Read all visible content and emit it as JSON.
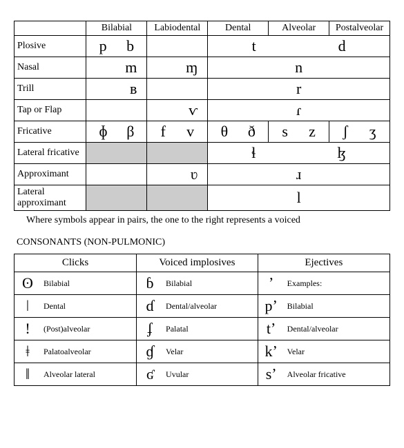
{
  "pulmonic": {
    "columns": [
      "",
      "Bilabial",
      "Labiodental",
      "Dental",
      "Alveolar",
      "Postalveolar"
    ],
    "rows": [
      {
        "label": "Plosive",
        "cells": [
          {
            "left": "p",
            "right": "b"
          },
          {
            "empty": true
          },
          {
            "span3": true,
            "left": "t",
            "right": "d"
          }
        ]
      },
      {
        "label": "Nasal",
        "cells": [
          {
            "right": "m"
          },
          {
            "right": "ɱ"
          },
          {
            "span3": true,
            "center": "n"
          }
        ]
      },
      {
        "label": "Trill",
        "cells": [
          {
            "right": "ʙ"
          },
          {
            "empty": true
          },
          {
            "span3": true,
            "center": "r"
          }
        ]
      },
      {
        "label": "Tap or Flap",
        "cells": [
          {
            "empty": true
          },
          {
            "right": "ⱱ"
          },
          {
            "span3": true,
            "center": "ɾ"
          }
        ]
      },
      {
        "label": "Fricative",
        "cells": [
          {
            "left": "ɸ",
            "right": "β"
          },
          {
            "left": "f",
            "right": "v"
          },
          {
            "left": "θ",
            "right": "ð"
          },
          {
            "left": "s",
            "right": "z"
          },
          {
            "left": "ʃ",
            "right": "ʒ"
          }
        ]
      },
      {
        "label": "Lateral fricative",
        "cells": [
          {
            "shaded": true
          },
          {
            "shaded": true
          },
          {
            "span3": true,
            "left": "ɬ",
            "right": "ɮ"
          }
        ]
      },
      {
        "label": "Approximant",
        "cells": [
          {
            "empty": true
          },
          {
            "right": "ʋ"
          },
          {
            "span3": true,
            "center": "ɹ"
          }
        ]
      },
      {
        "label": "Lateral approximant",
        "cells": [
          {
            "shaded": true
          },
          {
            "shaded": true
          },
          {
            "span3": true,
            "center": "l"
          }
        ]
      }
    ]
  },
  "caption": "Where symbols appear in pairs, the one to the right represents a voiced",
  "section_title": "CONSONANTS (NON-PULMONIC)",
  "nonpulmonic": {
    "headers": [
      "Clicks",
      "Voiced implosives",
      "Ejectives"
    ],
    "rows": [
      {
        "c1_sym": "ʘ",
        "c1_lab": "Bilabial",
        "c2_sym": "ɓ",
        "c2_lab": "Bilabial",
        "c3_sym": "ʼ",
        "c3_lab": "Examples:"
      },
      {
        "c1_sym": "ǀ",
        "c1_lab": "Dental",
        "c2_sym": "ɗ",
        "c2_lab": "Dental/alveolar",
        "c3_sym": "pʼ",
        "c3_lab": "Bilabial"
      },
      {
        "c1_sym": "ǃ",
        "c1_lab": "(Post)alveolar",
        "c2_sym": "ʄ",
        "c2_lab": "Palatal",
        "c3_sym": "tʼ",
        "c3_lab": "Dental/alveolar"
      },
      {
        "c1_sym": "ǂ",
        "c1_lab": "Palatoalveolar",
        "c2_sym": "ɠ",
        "c2_lab": "Velar",
        "c3_sym": "kʼ",
        "c3_lab": "Velar"
      },
      {
        "c1_sym": "ǁ",
        "c1_lab": "Alveolar lateral",
        "c2_sym": "ʛ",
        "c2_lab": "Uvular",
        "c3_sym": "sʼ",
        "c3_lab": "Alveolar fricative"
      }
    ]
  }
}
